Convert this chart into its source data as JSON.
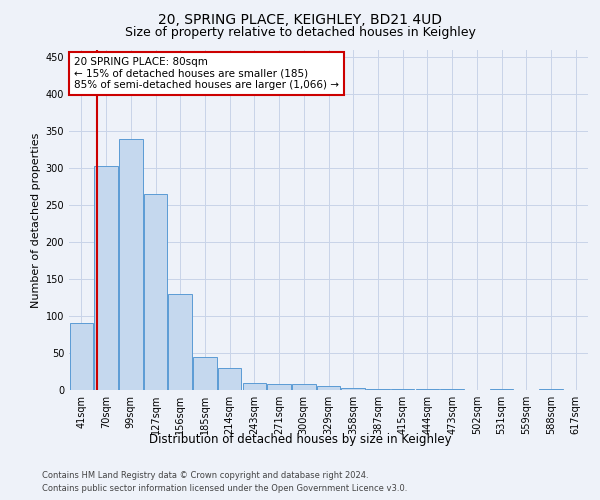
{
  "title1": "20, SPRING PLACE, KEIGHLEY, BD21 4UD",
  "title2": "Size of property relative to detached houses in Keighley",
  "xlabel": "Distribution of detached houses by size in Keighley",
  "ylabel": "Number of detached properties",
  "categories": [
    "41sqm",
    "70sqm",
    "99sqm",
    "127sqm",
    "156sqm",
    "185sqm",
    "214sqm",
    "243sqm",
    "271sqm",
    "300sqm",
    "329sqm",
    "358sqm",
    "387sqm",
    "415sqm",
    "444sqm",
    "473sqm",
    "502sqm",
    "531sqm",
    "559sqm",
    "588sqm",
    "617sqm"
  ],
  "values": [
    90,
    303,
    340,
    265,
    130,
    45,
    30,
    10,
    8,
    8,
    5,
    3,
    2,
    2,
    2,
    1,
    0,
    1,
    0,
    1,
    0
  ],
  "bar_color": "#c5d8ee",
  "bar_edge_color": "#5b9bd5",
  "annotation_line1": "20 SPRING PLACE: 80sqm",
  "annotation_line2": "← 15% of detached houses are smaller (185)",
  "annotation_line3": "85% of semi-detached houses are larger (1,066) →",
  "annotation_box_color": "#ffffff",
  "annotation_box_edge_color": "#cc0000",
  "vline_color": "#cc0000",
  "vline_x_index": 0.62,
  "ylim": [
    0,
    460
  ],
  "yticks": [
    0,
    50,
    100,
    150,
    200,
    250,
    300,
    350,
    400,
    450
  ],
  "footer1": "Contains HM Land Registry data © Crown copyright and database right 2024.",
  "footer2": "Contains public sector information licensed under the Open Government Licence v3.0.",
  "bg_color": "#eef2f9",
  "plot_bg_color": "#eef2f9",
  "title1_fontsize": 10,
  "title2_fontsize": 9,
  "xlabel_fontsize": 8.5,
  "ylabel_fontsize": 8,
  "tick_fontsize": 7,
  "annotation_fontsize": 7.5,
  "footer_fontsize": 6
}
